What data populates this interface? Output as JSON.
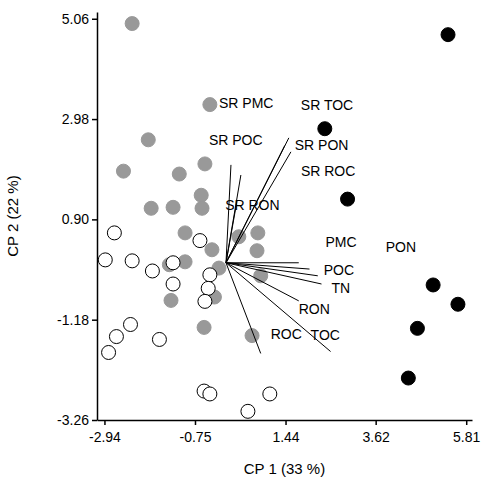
{
  "chart_data": {
    "type": "scatter",
    "x_label": "CP 1 (33 %)",
    "y_label": "CP 2 (22 %)",
    "xlim": [
      -3.12,
      5.95
    ],
    "ylim": [
      -3.26,
      5.2
    ],
    "xticks": [
      -2.94,
      -0.75,
      1.44,
      3.62,
      5.81
    ],
    "yticks": [
      -3.26,
      -1.18,
      {
        "value": 0.9,
        "label": "0.90"
      },
      2.98,
      5.06
    ],
    "series": [
      {
        "color": "#999999",
        "marker": "circle",
        "x": [
          -2.27,
          -0.39,
          -1.88,
          -0.51,
          -2.48,
          -1.13,
          -0.6,
          -1.81,
          -1.28,
          -0.58,
          -0.99,
          0.77,
          0.31,
          -1.37,
          -0.99,
          -0.34,
          -0.17,
          0.75,
          0.84,
          -0.28,
          -1.33,
          -0.53,
          0.63
        ],
        "y": [
          4.96,
          3.28,
          2.55,
          2.05,
          1.9,
          1.84,
          1.4,
          1.13,
          1.15,
          1.13,
          0.62,
          0.62,
          0.54,
          -0.04,
          0.02,
          0.27,
          -0.11,
          0.25,
          -0.27,
          -0.71,
          -0.78,
          -1.34,
          -1.51
        ]
      },
      {
        "color": "#ffffff",
        "marker": "circle",
        "x": [
          -2.7,
          -2.92,
          -2.27,
          -1.78,
          -1.28,
          -1.28,
          -0.39,
          -0.43,
          -0.51,
          -2.31,
          -2.65,
          -2.84,
          -1.61,
          -0.53,
          -0.39,
          1.06,
          0.53,
          -0.63
        ],
        "y": [
          0.62,
          0.06,
          0.04,
          -0.17,
          0.0,
          -0.44,
          -0.25,
          -0.53,
          -0.8,
          -1.28,
          -1.53,
          -1.86,
          -1.59,
          -2.66,
          -2.72,
          -2.72,
          -3.08,
          0.46
        ]
      },
      {
        "color": "#000000",
        "marker": "circle",
        "x": [
          5.37,
          2.39,
          2.94,
          5.01,
          5.61,
          4.63,
          4.41
        ],
        "y": [
          4.73,
          2.78,
          1.32,
          -0.46,
          -0.86,
          -1.36,
          -2.39
        ]
      }
    ],
    "loadings": [
      {
        "label": "SR PMC",
        "x": 0.12,
        "y": 2.03
      },
      {
        "label": "SR POC",
        "x": 0.36,
        "y": 1.82
      },
      {
        "label": "SR RON",
        "x": 0.27,
        "y": 1.3
      },
      {
        "label": "SR TOC",
        "x": 1.52,
        "y": 2.59
      },
      {
        "label": "SR PON",
        "x": 1.42,
        "y": 2.43
      },
      {
        "label": "SR ROC",
        "x": 1.57,
        "y": 2.3
      },
      {
        "label": "PMC",
        "x": 2.02,
        "y": -0.13
      },
      {
        "label": "POC",
        "x": 2.22,
        "y": -0.27
      },
      {
        "label": "TN",
        "x": 2.31,
        "y": -0.44
      },
      {
        "label": "PON",
        "x": 1.76,
        "y": 0.0
      },
      {
        "label": "RON",
        "x": 1.76,
        "y": -0.79
      },
      {
        "label": "ROC",
        "x": 0.84,
        "y": -1.88
      },
      {
        "label": "TOC",
        "x": 2.53,
        "y": -1.84
      }
    ]
  }
}
